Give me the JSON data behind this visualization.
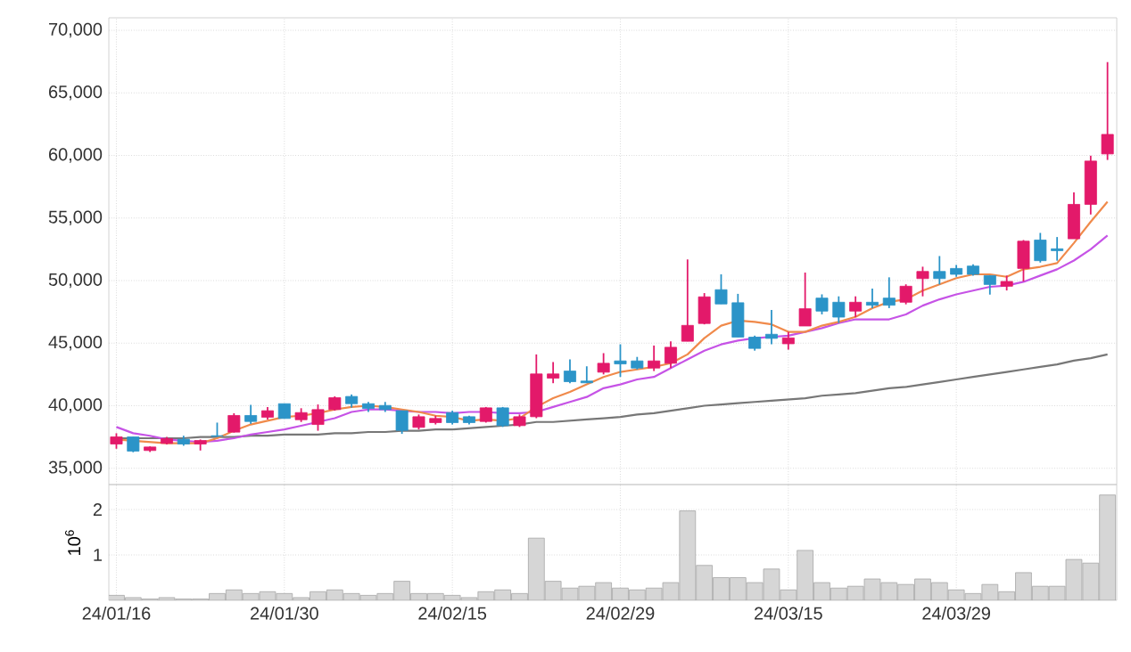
{
  "chart_data": [
    {
      "type": "candlestick",
      "tick_labels": "y",
      "grid": true,
      "marker": "none",
      "line_style": "solid",
      "categories": [
        null,
        null,
        null,
        null,
        null,
        null,
        null,
        null,
        null,
        null,
        null,
        null,
        null,
        null,
        null,
        null,
        null,
        null,
        null,
        null,
        null,
        null,
        null,
        null,
        null,
        null,
        null,
        null,
        null,
        null,
        null,
        null,
        null,
        null,
        null,
        null,
        null,
        null,
        null,
        null,
        null,
        null,
        null,
        null,
        null,
        null,
        null,
        null,
        null,
        null,
        null,
        null,
        null,
        null,
        null,
        null,
        null,
        null,
        null,
        null
      ],
      "ylim": [
        33700,
        71000
      ],
      "yticks": [
        {
          "value": 35000,
          "label": "35,000"
        },
        {
          "value": 40000,
          "label": "40,000"
        },
        {
          "value": 45000,
          "label": "45,000"
        },
        {
          "value": 50000,
          "label": "50,000"
        },
        {
          "value": 55000,
          "label": "55,000"
        },
        {
          "value": 60000,
          "label": "60,000"
        },
        {
          "value": 65000,
          "label": "65,000"
        },
        {
          "value": 70000,
          "label": "70,000"
        }
      ],
      "ohlc": [
        [
          36940,
          37800,
          36560,
          37510
        ],
        [
          37510,
          37510,
          36280,
          36370
        ],
        [
          36420,
          36750,
          36300,
          36700
        ],
        [
          36990,
          37500,
          36900,
          37370
        ],
        [
          37320,
          37600,
          36800,
          36940
        ],
        [
          36940,
          37300,
          36420,
          37220
        ],
        [
          37600,
          38650,
          37500,
          37550
        ],
        [
          37890,
          39400,
          37850,
          39220
        ],
        [
          39220,
          40070,
          38550,
          38740
        ],
        [
          39080,
          39900,
          38900,
          39600
        ],
        [
          40160,
          40160,
          38980,
          38980
        ],
        [
          38880,
          39800,
          38700,
          39450
        ],
        [
          38500,
          40100,
          38000,
          39690
        ],
        [
          39690,
          40750,
          39600,
          40640
        ],
        [
          40740,
          40900,
          39850,
          40160
        ],
        [
          40160,
          40300,
          39500,
          39780
        ],
        [
          40020,
          40300,
          39500,
          39690
        ],
        [
          39600,
          39600,
          37750,
          38030
        ],
        [
          38270,
          39300,
          38100,
          39120
        ],
        [
          38650,
          39200,
          38500,
          38980
        ],
        [
          39450,
          39600,
          38500,
          38650
        ],
        [
          39120,
          39200,
          38500,
          38650
        ],
        [
          38740,
          39900,
          38650,
          39830
        ],
        [
          39830,
          39900,
          38300,
          38410
        ],
        [
          38410,
          39300,
          38300,
          39120
        ],
        [
          39120,
          44100,
          39000,
          42540
        ],
        [
          42200,
          43490,
          41800,
          42540
        ],
        [
          42770,
          43700,
          41800,
          41920
        ],
        [
          41970,
          43150,
          41830,
          41830
        ],
        [
          42680,
          44200,
          42500,
          43390
        ],
        [
          43580,
          44910,
          42300,
          43340
        ],
        [
          43580,
          43900,
          42900,
          43010
        ],
        [
          43010,
          44810,
          42770,
          43580
        ],
        [
          43390,
          45150,
          43010,
          44670
        ],
        [
          45150,
          51690,
          45150,
          46420
        ],
        [
          46570,
          49000,
          46500,
          48700
        ],
        [
          49270,
          50500,
          48130,
          48130
        ],
        [
          48230,
          48940,
          45480,
          45480
        ],
        [
          45480,
          45600,
          44400,
          44580
        ],
        [
          45710,
          47660,
          44910,
          45380
        ],
        [
          44950,
          45900,
          44480,
          45420
        ],
        [
          46370,
          50640,
          46370,
          47750
        ],
        [
          48600,
          48900,
          47300,
          47560
        ],
        [
          48270,
          48740,
          46610,
          47080
        ],
        [
          47560,
          48740,
          47080,
          48270
        ],
        [
          48270,
          49360,
          47800,
          48030
        ],
        [
          48600,
          50260,
          47800,
          48030
        ],
        [
          48270,
          49700,
          48100,
          49550
        ],
        [
          50160,
          51110,
          48740,
          50730
        ],
        [
          50730,
          51960,
          49690,
          50160
        ],
        [
          50970,
          51250,
          50300,
          50500
        ],
        [
          51160,
          51300,
          50400,
          50500
        ],
        [
          50400,
          50400,
          48880,
          49690
        ],
        [
          49550,
          50400,
          49210,
          49930
        ],
        [
          50970,
          53240,
          49930,
          53150
        ],
        [
          53240,
          53810,
          51440,
          51590
        ],
        [
          52540,
          53480,
          51590,
          52390
        ],
        [
          53340,
          57040,
          53340,
          56090
        ],
        [
          56090,
          59980,
          55280,
          59550
        ],
        [
          60120,
          67460,
          59640,
          61680
        ]
      ],
      "colors": [
        "#e3196a",
        "#2b94c8",
        "#e3196a",
        "#e3196a",
        "#2b94c8",
        "#e3196a",
        "#2b94c8",
        "#e3196a",
        "#2b94c8",
        "#e3196a",
        "#2b94c8",
        "#e3196a",
        "#e3196a",
        "#e3196a",
        "#2b94c8",
        "#2b94c8",
        "#2b94c8",
        "#2b94c8",
        "#e3196a",
        "#e3196a",
        "#2b94c8",
        "#2b94c8",
        "#e3196a",
        "#2b94c8",
        "#e3196a",
        "#e3196a",
        "#e3196a",
        "#2b94c8",
        "#2b94c8",
        "#e3196a",
        "#2b94c8",
        "#2b94c8",
        "#e3196a",
        "#e3196a",
        "#e3196a",
        "#e3196a",
        "#2b94c8",
        "#2b94c8",
        "#2b94c8",
        "#2b94c8",
        "#e3196a",
        "#e3196a",
        "#2b94c8",
        "#2b94c8",
        "#e3196a",
        "#2b94c8",
        "#2b94c8",
        "#e3196a",
        "#e3196a",
        "#2b94c8",
        "#2b94c8",
        "#2b94c8",
        "#2b94c8",
        "#e3196a",
        "#e3196a",
        "#2b94c8",
        "#2b94c8",
        "#e3196a",
        "#e3196a",
        "#e3196a"
      ],
      "series": [
        {
          "type": "line",
          "color": "#777777",
          "values": [
            37400,
            37400,
            37400,
            37400,
            37400,
            37500,
            37500,
            37500,
            37600,
            37600,
            37700,
            37700,
            37700,
            37800,
            37800,
            37900,
            37900,
            38000,
            38000,
            38100,
            38100,
            38200,
            38300,
            38400,
            38500,
            38700,
            38700,
            38800,
            38900,
            39000,
            39100,
            39300,
            39400,
            39600,
            39800,
            40000,
            40100,
            40200,
            40300,
            40400,
            40500,
            40600,
            40800,
            40900,
            41000,
            41200,
            41400,
            41500,
            41700,
            41900,
            42100,
            42300,
            42500,
            42700,
            42900,
            43100,
            43300,
            43600,
            43800,
            44100
          ]
        },
        {
          "type": "line",
          "color": "#c653e6",
          "values": [
            38300,
            37800,
            37600,
            37300,
            37200,
            37100,
            37200,
            37400,
            37700,
            37900,
            38100,
            38400,
            38700,
            39000,
            39500,
            39700,
            39700,
            39600,
            39500,
            39500,
            39400,
            39500,
            39500,
            39400,
            39400,
            39500,
            39900,
            40300,
            40700,
            41400,
            41700,
            42100,
            42300,
            43000,
            43700,
            44400,
            44900,
            45200,
            45400,
            45500,
            45600,
            45900,
            46200,
            46600,
            46900,
            46900,
            46900,
            47300,
            48000,
            48500,
            48900,
            49200,
            49500,
            49600,
            49900,
            50400,
            50900,
            51600,
            52500,
            53600
          ]
        },
        {
          "type": "line",
          "color": "#f08a4b",
          "values": [
            37300,
            37200,
            37100,
            37000,
            37000,
            37000,
            37400,
            38000,
            38500,
            38800,
            39100,
            39200,
            39400,
            39700,
            39900,
            40000,
            39900,
            39700,
            39500,
            39200,
            39100,
            38800,
            38900,
            38800,
            39000,
            39900,
            40600,
            41100,
            41700,
            42300,
            42700,
            42900,
            43100,
            43400,
            44100,
            45400,
            46400,
            46800,
            46700,
            46500,
            45900,
            45900,
            46400,
            46700,
            47100,
            47800,
            48300,
            48500,
            49200,
            49700,
            50200,
            50500,
            50500,
            50300,
            50900,
            51100,
            51400,
            53000,
            54700,
            56300
          ]
        }
      ]
    },
    {
      "type": "bar",
      "grid": true,
      "ylabel": "10$^{6}$",
      "color": "#d6d6d6",
      "categories": [
        "24/01/16",
        null,
        null,
        null,
        null,
        null,
        null,
        null,
        null,
        null,
        "24/01/30",
        null,
        null,
        null,
        null,
        null,
        null,
        null,
        null,
        null,
        "24/02/15",
        null,
        null,
        null,
        null,
        null,
        null,
        null,
        null,
        null,
        "24/02/29",
        null,
        null,
        null,
        null,
        null,
        null,
        null,
        null,
        null,
        "24/03/15",
        null,
        null,
        null,
        null,
        null,
        null,
        null,
        null,
        null,
        "24/03/29",
        null,
        null,
        null,
        null,
        null,
        null,
        null,
        null,
        null
      ],
      "ylim": [
        0,
        2.55
      ],
      "yticks": [
        1,
        2
      ],
      "values": [
        0.11,
        0.06,
        0.03,
        0.06,
        0.03,
        0.03,
        0.15,
        0.23,
        0.15,
        0.19,
        0.15,
        0.06,
        0.19,
        0.23,
        0.15,
        0.11,
        0.15,
        0.42,
        0.15,
        0.15,
        0.11,
        0.06,
        0.19,
        0.23,
        0.15,
        1.37,
        0.42,
        0.27,
        0.31,
        0.39,
        0.27,
        0.23,
        0.27,
        0.39,
        1.97,
        0.77,
        0.5,
        0.5,
        0.39,
        0.69,
        0.23,
        1.1,
        0.39,
        0.27,
        0.31,
        0.47,
        0.39,
        0.35,
        0.47,
        0.39,
        0.23,
        0.15,
        0.35,
        0.19,
        0.61,
        0.31,
        0.31,
        0.9,
        0.82,
        2.32
      ]
    }
  ]
}
